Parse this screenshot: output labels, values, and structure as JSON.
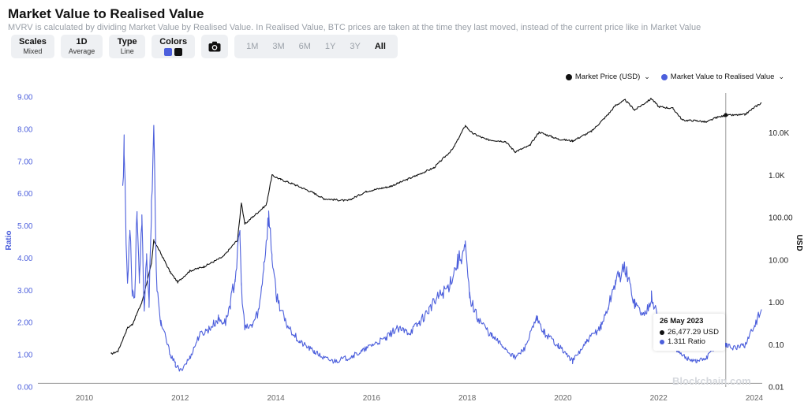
{
  "title": "Market Value to Realised Value",
  "subtitle": "MVRV is calculated by dividing Market Value by Realised Value. In Realised Value, BTC prices are taken at the time they last moved, instead of the current price like in Market Value",
  "toolbar": {
    "scales": {
      "label": "Scales",
      "value": "Mixed"
    },
    "period": {
      "label": "1D",
      "value": "Average"
    },
    "type": {
      "label": "Type",
      "value": "Line"
    },
    "colors": {
      "label": "Colors",
      "swatch1": "#4c5fdc",
      "swatch2": "#111111"
    },
    "camera_icon": "camera-icon",
    "ranges": [
      "1M",
      "3M",
      "6M",
      "1Y",
      "3Y",
      "All"
    ],
    "active_range": "All"
  },
  "legend": {
    "price": "Market Price (USD)",
    "mvrv": "Market Value to Realised Value"
  },
  "tooltip": {
    "date": "26 May 2023",
    "price": "26,477.29 USD",
    "ratio": "1.311 Ratio"
  },
  "watermark": "Blockchain.com",
  "colors": {
    "ratio": "#4c5fdc",
    "price": "#111111",
    "crosshair": "#9a9a9a"
  },
  "chart_data": {
    "type": "line",
    "ylabel": "Ratio",
    "y2label": "USD",
    "ylim": [
      0,
      9
    ],
    "y_ticks": [
      "0.00",
      "1.00",
      "2.00",
      "3.00",
      "4.00",
      "5.00",
      "6.00",
      "7.00",
      "8.00",
      "9.00"
    ],
    "y2_scale": "log",
    "y2lim": [
      0.01,
      100000
    ],
    "y2_ticks": [
      "0.01",
      "0.10",
      "1.00",
      "10.00",
      "100.00",
      "1.0K",
      "10.0K"
    ],
    "x_ticks": [
      "2010",
      "2012",
      "2014",
      "2016",
      "2018",
      "2020",
      "2022",
      "2024"
    ],
    "grid": false,
    "legend_position": "top-right",
    "crosshair": {
      "x": "2023-05-26",
      "ratio": 1.311,
      "price": 26477.29
    },
    "series": [
      {
        "name": "Market Value to Realised Value",
        "axis": "left",
        "x": [
          2010.55,
          2010.6,
          2010.7,
          2010.8,
          2010.83,
          2010.87,
          2010.9,
          2010.95,
          2011.0,
          2011.05,
          2011.1,
          2011.15,
          2011.2,
          2011.25,
          2011.3,
          2011.35,
          2011.4,
          2011.45,
          2011.5,
          2011.55,
          2011.6,
          2011.7,
          2011.8,
          2011.9,
          2012.0,
          2012.2,
          2012.4,
          2012.6,
          2012.8,
          2012.95,
          2013.05,
          2013.15,
          2013.25,
          2013.28,
          2013.35,
          2013.5,
          2013.65,
          2013.75,
          2013.85,
          2013.92,
          2014.0,
          2014.2,
          2014.5,
          2014.8,
          2015.0,
          2015.2,
          2015.5,
          2015.8,
          2016.0,
          2016.3,
          2016.5,
          2016.8,
          2017.0,
          2017.2,
          2017.4,
          2017.6,
          2017.8,
          2017.96,
          2018.05,
          2018.2,
          2018.5,
          2018.8,
          2019.0,
          2019.2,
          2019.45,
          2019.6,
          2019.9,
          2020.2,
          2020.5,
          2020.8,
          2020.95,
          2021.1,
          2021.3,
          2021.5,
          2021.7,
          2021.85,
          2022.0,
          2022.2,
          2022.45,
          2022.6,
          2022.8,
          2023.0,
          2023.2,
          2023.4,
          2023.6,
          2023.8,
          2024.0,
          2024.15
        ],
        "y": [
          null,
          null,
          null,
          6.4,
          7.6,
          4.5,
          3.2,
          5.1,
          3.0,
          2.8,
          5.6,
          3.2,
          5.1,
          2.4,
          4.2,
          2.5,
          5.6,
          8.2,
          3.5,
          2.5,
          2.0,
          1.5,
          1.0,
          0.7,
          0.5,
          0.9,
          1.6,
          1.8,
          2.1,
          2.0,
          2.6,
          3.4,
          4.8,
          3.1,
          1.8,
          1.9,
          2.4,
          3.8,
          5.3,
          4.1,
          2.9,
          2.0,
          1.4,
          1.1,
          0.9,
          0.8,
          0.9,
          1.1,
          1.3,
          1.5,
          1.8,
          1.7,
          2.0,
          2.4,
          2.8,
          3.1,
          3.9,
          4.3,
          2.8,
          2.2,
          1.6,
          1.2,
          0.9,
          1.2,
          2.1,
          1.7,
          1.3,
          0.8,
          1.4,
          1.9,
          2.5,
          3.3,
          3.7,
          2.6,
          2.2,
          2.8,
          2.1,
          1.6,
          1.0,
          0.9,
          0.8,
          0.9,
          1.3,
          1.3,
          1.2,
          1.3,
          1.9,
          2.4
        ]
      },
      {
        "name": "Market Price (USD)",
        "axis": "right",
        "x": [
          2010.55,
          2010.7,
          2010.9,
          2011.0,
          2011.2,
          2011.4,
          2011.45,
          2011.6,
          2011.8,
          2011.95,
          2012.2,
          2012.5,
          2012.9,
          2013.2,
          2013.28,
          2013.35,
          2013.5,
          2013.8,
          2013.92,
          2014.1,
          2014.4,
          2014.8,
          2015.0,
          2015.5,
          2015.9,
          2016.4,
          2016.9,
          2017.3,
          2017.7,
          2017.96,
          2018.1,
          2018.4,
          2018.8,
          2019.0,
          2019.3,
          2019.5,
          2019.9,
          2020.2,
          2020.6,
          2020.95,
          2021.1,
          2021.3,
          2021.5,
          2021.85,
          2022.0,
          2022.3,
          2022.5,
          2022.8,
          2023.0,
          2023.2,
          2023.4,
          2023.8,
          2024.0,
          2024.15
        ],
        "y": [
          0.06,
          0.07,
          0.25,
          0.3,
          1.0,
          8.0,
          29.0,
          14.0,
          5.0,
          3.0,
          5.5,
          7.0,
          12.0,
          30.0,
          230.0,
          70.0,
          100.0,
          200.0,
          1000.0,
          800.0,
          600.0,
          380.0,
          280.0,
          250.0,
          420.0,
          550.0,
          950.0,
          1500.0,
          4200.0,
          15000.0,
          10000.0,
          7000.0,
          6300.0,
          3600.0,
          5000.0,
          10500.0,
          7200.0,
          6500.0,
          11000.0,
          28000.0,
          45000.0,
          60000.0,
          35000.0,
          65000.0,
          42000.0,
          38000.0,
          20000.0,
          19500.0,
          18000.0,
          23000.0,
          26000.0,
          27000.0,
          40000.0,
          52000.0
        ]
      }
    ]
  }
}
